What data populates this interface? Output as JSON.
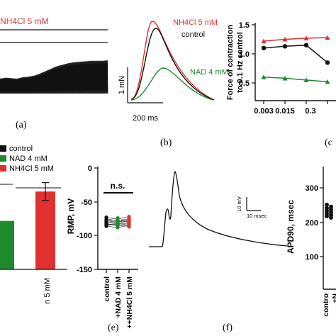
{
  "colors": {
    "control": "#111111",
    "nad": "#1f8a2e",
    "nh4cl": "#e03030"
  },
  "panel_a": {
    "label": "(a)",
    "legend": "NH4Cl 5 mM",
    "trace_amplitude_series": [
      0.3,
      0.32,
      0.31,
      0.3,
      0.33,
      0.34,
      0.36,
      0.4,
      0.45,
      0.5,
      0.55,
      0.58,
      0.61,
      0.63,
      0.64,
      0.65,
      0.66,
      0.66,
      0.66,
      0.67
    ]
  },
  "panel_b": {
    "label": "(b)",
    "legend": [
      "NH4Cl 5 mM",
      "control",
      "NAD 4 mM"
    ],
    "scale_y": "1 mN",
    "scale_x": "200 ms"
  },
  "panel_c": {
    "label": "(c",
    "ylabel_line1": "Force of contraction",
    "ylabel_line2": "to 0.1 Hz control",
    "y_ticks": [
      "1.5",
      "1.0",
      "0.5"
    ],
    "x_ticks": [
      "0.003",
      "0.015",
      "0.3"
    ],
    "chart_data": {
      "type": "line",
      "x": [
        "0.003",
        "0.015",
        "0.03",
        "0.06"
      ],
      "ylim": [
        0.3,
        1.6
      ],
      "series": [
        {
          "name": "NH4Cl 5 mM",
          "values": [
            1.22,
            1.25,
            1.27,
            1.28
          ]
        },
        {
          "name": "control",
          "values": [
            1.1,
            1.13,
            1.15,
            0.85
          ]
        },
        {
          "name": "NAD 4 mM",
          "values": [
            0.6,
            0.58,
            0.55,
            0.52
          ]
        }
      ]
    }
  },
  "panel_d": {
    "legend": [
      "control",
      "NAD 4 mM",
      "NH4Cl 5 mM"
    ],
    "partial_tick_label": "n 5 mM",
    "chart_data": {
      "type": "bar",
      "categories": [
        "NAD 4 mM",
        "NH4Cl 5 mM"
      ],
      "values": [
        0.38,
        0.61
      ],
      "error": [
        0.0,
        0.07
      ],
      "ylim": [
        0,
        1
      ]
    }
  },
  "panel_e": {
    "label": "(e)",
    "ylabel": "RMP, mV",
    "y_ticks": [
      "0",
      "-50",
      "-100",
      "-150"
    ],
    "significance": "n.s.",
    "x_ticks": [
      "control",
      "+NAD 4 mM",
      "++NH4Cl 5 mM"
    ],
    "chart_data": {
      "type": "scatter",
      "ylim": [
        -150,
        0
      ],
      "categories": [
        "control",
        "+NAD 4 mM",
        "++NH4Cl 5 mM"
      ],
      "pairs": [
        [
          -73,
          -75,
          -72
        ],
        [
          -76,
          -78,
          -75
        ],
        [
          -78,
          -80,
          -76
        ],
        [
          -80,
          -82,
          -78
        ],
        [
          -81,
          -79,
          -80
        ],
        [
          -83,
          -85,
          -82
        ],
        [
          -84,
          -82,
          -83
        ],
        [
          -86,
          -88,
          -85
        ],
        [
          -79,
          -76,
          -81
        ],
        [
          -77,
          -74,
          -79
        ],
        [
          -82,
          -86,
          -84
        ],
        [
          -85,
          -83,
          -87
        ]
      ]
    }
  },
  "panel_f": {
    "label": "(f)",
    "scale_y": "10 mV",
    "scale_x": "10 msec"
  },
  "panel_g": {
    "ylabel": "APD90, msec",
    "y_ticks": [
      "300",
      "200",
      "100"
    ],
    "x_ticks": [
      "contro",
      "+N"
    ],
    "chart_data": {
      "type": "scatter",
      "ylim": [
        0,
        320
      ],
      "values": [
        250,
        244,
        240,
        236,
        232,
        228,
        224,
        220,
        216,
        212
      ]
    }
  }
}
